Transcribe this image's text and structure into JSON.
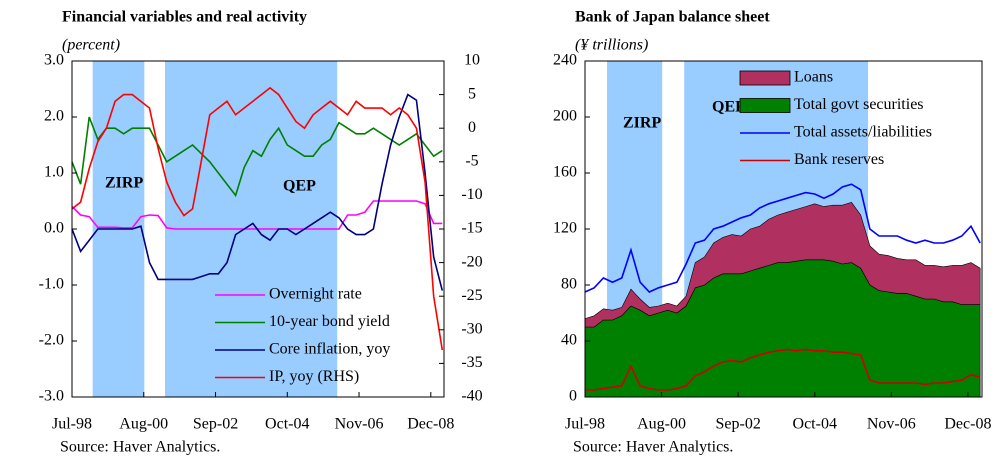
{
  "chart_data": [
    {
      "type": "line",
      "title": "Financial variables and real activity",
      "subtitle": "(percent)",
      "source": "Source: Haver Analytics.",
      "x": [
        1998.5,
        1998.75,
        1999,
        1999.25,
        1999.5,
        1999.75,
        2000,
        2000.25,
        2000.5,
        2000.75,
        2001,
        2001.25,
        2001.5,
        2001.75,
        2002,
        2002.25,
        2002.5,
        2002.75,
        2003,
        2003.25,
        2003.5,
        2003.75,
        2004,
        2004.25,
        2004.5,
        2004.75,
        2005,
        2005.25,
        2005.5,
        2005.75,
        2006,
        2006.25,
        2006.5,
        2006.75,
        2007,
        2007.25,
        2007.5,
        2007.75,
        2008,
        2008.25,
        2008.5,
        2008.75,
        2009,
        2009.25
      ],
      "xlim": [
        1998.5,
        2009.3
      ],
      "xticks": [
        {
          "value": 1998.5,
          "label": "Jul-98"
        },
        {
          "value": 2000.583,
          "label": "Aug-00"
        },
        {
          "value": 2002.667,
          "label": "Sep-02"
        },
        {
          "value": 2004.75,
          "label": "Oct-04"
        },
        {
          "value": 2006.833,
          "label": "Nov-06"
        },
        {
          "value": 2008.917,
          "label": "Dec-08"
        }
      ],
      "ylim": [
        -3,
        3
      ],
      "yticks": [
        {
          "value": -3,
          "label": "-3.0"
        },
        {
          "value": -2,
          "label": "-2.0"
        },
        {
          "value": -1,
          "label": "-1.0"
        },
        {
          "value": 0,
          "label": "0.0"
        },
        {
          "value": 1,
          "label": "1.0"
        },
        {
          "value": 2,
          "label": "2.0"
        },
        {
          "value": 3,
          "label": "3.0"
        }
      ],
      "y2lim": [
        -40,
        10
      ],
      "y2ticks": [
        -40,
        -35,
        -30,
        -25,
        -20,
        -15,
        -10,
        -5,
        0,
        5,
        10
      ],
      "periods": [
        {
          "label": "ZIRP",
          "start": 1999.1,
          "end": 2000.6
        },
        {
          "label": "QEP",
          "start": 2001.2,
          "end": 2006.2
        }
      ],
      "shade_color": "#99ccff",
      "period_label_color": "#3d9bff",
      "series": [
        {
          "name": "Overnight rate",
          "color": "#ff00ff",
          "values": [
            0.4,
            0.25,
            0.22,
            0.03,
            0.03,
            0.03,
            0.02,
            0.02,
            0.22,
            0.25,
            0.24,
            0.02,
            0,
            0,
            0,
            0,
            0,
            0,
            0,
            0,
            0,
            0,
            0,
            0,
            0,
            0,
            0,
            0,
            0,
            0,
            0,
            0,
            0.25,
            0.25,
            0.3,
            0.5,
            0.5,
            0.5,
            0.5,
            0.5,
            0.5,
            0.45,
            0.1,
            0.1
          ]
        },
        {
          "name": "10-year bond yield",
          "color": "#008000",
          "values": [
            1.2,
            0.8,
            2.0,
            1.6,
            1.8,
            1.8,
            1.7,
            1.8,
            1.8,
            1.8,
            1.5,
            1.2,
            1.3,
            1.4,
            1.5,
            1.35,
            1.2,
            1.0,
            0.8,
            0.6,
            1.1,
            1.4,
            1.3,
            1.6,
            1.8,
            1.5,
            1.4,
            1.3,
            1.3,
            1.5,
            1.6,
            1.9,
            1.8,
            1.7,
            1.7,
            1.8,
            1.7,
            1.6,
            1.5,
            1.6,
            1.7,
            1.5,
            1.3,
            1.4
          ]
        },
        {
          "name": "Core inflation, yoy",
          "color": "#000080",
          "values": [
            0,
            -0.4,
            -0.2,
            0,
            0,
            0,
            0,
            0,
            0.05,
            -0.6,
            -0.9,
            -0.9,
            -0.9,
            -0.9,
            -0.9,
            -0.85,
            -0.8,
            -0.8,
            -0.6,
            -0.1,
            0,
            0.1,
            -0.1,
            -0.2,
            0,
            0,
            -0.1,
            0,
            0.1,
            0.2,
            0.3,
            0.2,
            0,
            -0.1,
            -0.1,
            0,
            0.8,
            1.5,
            2.0,
            2.4,
            2.3,
            1.0,
            -0.5,
            -1.1
          ]
        },
        {
          "name": "IP, yoy (RHS)",
          "color": "#ff0000",
          "axis": "y2",
          "values": [
            -12,
            -11,
            -6,
            -2,
            0,
            4,
            5,
            5,
            4,
            3,
            -3,
            -8,
            -11,
            -13,
            -12,
            -5,
            2,
            3,
            4,
            2,
            3,
            4,
            5,
            6,
            5,
            3,
            1,
            0,
            2,
            3,
            4,
            3,
            2,
            4,
            3,
            3,
            3,
            2,
            3,
            2,
            0,
            -8,
            -25,
            -33
          ]
        }
      ]
    },
    {
      "type": "area",
      "title": "Bank of Japan balance sheet",
      "subtitle": "(¥ trillions)",
      "source": "Source: Haver Analytics.",
      "x": [
        1998.5,
        1998.75,
        1999,
        1999.25,
        1999.5,
        1999.75,
        2000,
        2000.25,
        2000.5,
        2000.75,
        2001,
        2001.25,
        2001.5,
        2001.75,
        2002,
        2002.25,
        2002.5,
        2002.75,
        2003,
        2003.25,
        2003.5,
        2003.75,
        2004,
        2004.25,
        2004.5,
        2004.75,
        2005,
        2005.25,
        2005.5,
        2005.75,
        2006,
        2006.25,
        2006.5,
        2006.75,
        2007,
        2007.25,
        2007.5,
        2007.75,
        2008,
        2008.25,
        2008.5,
        2008.75,
        2009,
        2009.25
      ],
      "xlim": [
        1998.5,
        2009.3
      ],
      "xticks": [
        {
          "value": 1998.5,
          "label": "Jul-98"
        },
        {
          "value": 2000.583,
          "label": "Aug-00"
        },
        {
          "value": 2002.667,
          "label": "Sep-02"
        },
        {
          "value": 2004.75,
          "label": "Oct-04"
        },
        {
          "value": 2006.833,
          "label": "Nov-06"
        },
        {
          "value": 2008.917,
          "label": "Dec-08"
        }
      ],
      "ylim": [
        0,
        240
      ],
      "yticks": [
        0,
        40,
        80,
        120,
        160,
        200,
        240
      ],
      "periods": [
        {
          "label": "ZIRP",
          "start": 1999.1,
          "end": 2000.6
        },
        {
          "label": "QEP",
          "start": 2001.2,
          "end": 2006.2
        }
      ],
      "shade_color": "#99ccff",
      "period_label_color": "#3d9bff",
      "series": [
        {
          "name": "Loans",
          "color": "#b03060",
          "kind": "area",
          "values": [
            6,
            8,
            8,
            7,
            6,
            12,
            8,
            6,
            5,
            5,
            5,
            7,
            18,
            20,
            25,
            26,
            28,
            27,
            30,
            30,
            33,
            34,
            36,
            37,
            38,
            40,
            38,
            40,
            42,
            43,
            38,
            28,
            26,
            26,
            25,
            24,
            26,
            24,
            24,
            25,
            26,
            28,
            30,
            26
          ]
        },
        {
          "name": "Total govt securities",
          "color": "#008000",
          "kind": "area",
          "values": [
            50,
            50,
            55,
            55,
            58,
            65,
            62,
            58,
            60,
            62,
            60,
            65,
            78,
            80,
            85,
            88,
            88,
            88,
            90,
            92,
            94,
            96,
            96,
            97,
            98,
            98,
            98,
            97,
            95,
            96,
            92,
            80,
            76,
            75,
            74,
            74,
            72,
            70,
            70,
            68,
            68,
            66,
            66,
            66
          ]
        },
        {
          "name": "Total assets/liabilities",
          "color": "#0000ff",
          "kind": "line",
          "values": [
            75,
            78,
            85,
            82,
            85,
            105,
            82,
            75,
            78,
            80,
            82,
            95,
            110,
            112,
            120,
            122,
            125,
            128,
            130,
            135,
            138,
            140,
            142,
            144,
            146,
            145,
            142,
            145,
            150,
            152,
            148,
            120,
            115,
            115,
            115,
            112,
            110,
            112,
            110,
            110,
            112,
            115,
            122,
            110
          ]
        },
        {
          "name": "Bank reserves",
          "color": "#cc0000",
          "kind": "line",
          "values": [
            5,
            5,
            6,
            7,
            8,
            22,
            8,
            6,
            5,
            5,
            6,
            8,
            15,
            18,
            22,
            25,
            26,
            25,
            28,
            30,
            32,
            33,
            34,
            33,
            34,
            33,
            33,
            32,
            32,
            31,
            30,
            12,
            10,
            10,
            10,
            10,
            10,
            9,
            10,
            10,
            11,
            12,
            16,
            14
          ]
        }
      ]
    }
  ]
}
